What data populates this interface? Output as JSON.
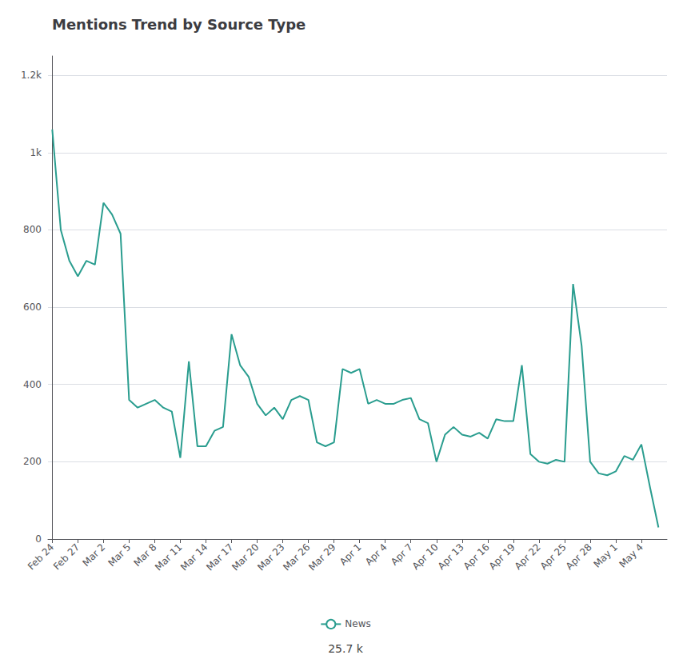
{
  "chart_data": {
    "type": "line",
    "title": "Mentions Trend by Source Type",
    "x": [
      0,
      1,
      2,
      3,
      4,
      5,
      6,
      7,
      8,
      9,
      10,
      11,
      12,
      13,
      14,
      15,
      16,
      17,
      18,
      19,
      20,
      21,
      22,
      23,
      24,
      25,
      26,
      27,
      28,
      29,
      30,
      31,
      32,
      33,
      34,
      35,
      36,
      37,
      38,
      39,
      40,
      41,
      42,
      43,
      44,
      45,
      46,
      47,
      48,
      49,
      50,
      51,
      52,
      53,
      54,
      55,
      56,
      57,
      58,
      59,
      60,
      61,
      62,
      63,
      64,
      65,
      66,
      67,
      68,
      69,
      70,
      71
    ],
    "series": [
      {
        "name": "News",
        "color": "#2a9d8f",
        "values": [
          1060,
          800,
          720,
          680,
          720,
          710,
          870,
          840,
          790,
          360,
          340,
          350,
          360,
          340,
          330,
          210,
          460,
          240,
          240,
          280,
          290,
          530,
          450,
          420,
          350,
          320,
          340,
          310,
          360,
          370,
          360,
          250,
          240,
          250,
          440,
          430,
          440,
          350,
          360,
          350,
          350,
          360,
          365,
          310,
          300,
          200,
          270,
          290,
          270,
          265,
          275,
          260,
          310,
          305,
          305,
          450,
          220,
          200,
          195,
          205,
          200,
          660,
          500,
          200,
          170,
          165,
          175,
          215,
          205,
          245,
          135,
          30
        ]
      }
    ],
    "xlim": [
      -0.5,
      72
    ],
    "xticks": [
      {
        "value": 0,
        "label": "Feb 24"
      },
      {
        "value": 3,
        "label": "Feb 27"
      },
      {
        "value": 6,
        "label": "Mar 2"
      },
      {
        "value": 9,
        "label": "Mar 5"
      },
      {
        "value": 12,
        "label": "Mar 8"
      },
      {
        "value": 15,
        "label": "Mar 11"
      },
      {
        "value": 18,
        "label": "Mar 14"
      },
      {
        "value": 21,
        "label": "Mar 17"
      },
      {
        "value": 24,
        "label": "Mar 20"
      },
      {
        "value": 27,
        "label": "Mar 23"
      },
      {
        "value": 30,
        "label": "Mar 26"
      },
      {
        "value": 33,
        "label": "Mar 29"
      },
      {
        "value": 36,
        "label": "Apr 1"
      },
      {
        "value": 39,
        "label": "Apr 4"
      },
      {
        "value": 42,
        "label": "Apr 7"
      },
      {
        "value": 45,
        "label": "Apr 10"
      },
      {
        "value": 48,
        "label": "Apr 13"
      },
      {
        "value": 51,
        "label": "Apr 16"
      },
      {
        "value": 54,
        "label": "Apr 19"
      },
      {
        "value": 57,
        "label": "Apr 22"
      },
      {
        "value": 60,
        "label": "Apr 25"
      },
      {
        "value": 63,
        "label": "Apr 28"
      },
      {
        "value": 66,
        "label": "May 1"
      },
      {
        "value": 69,
        "label": "May 4"
      }
    ],
    "ylim": [
      0,
      1250
    ],
    "yticks": [
      0,
      200,
      400,
      600,
      800,
      {
        "value": 1000,
        "label": "1k"
      },
      {
        "value": 1200,
        "label": "1.2k"
      }
    ],
    "grid": "y",
    "legend": "bottom",
    "annotations": [
      "25.7 k"
    ]
  }
}
